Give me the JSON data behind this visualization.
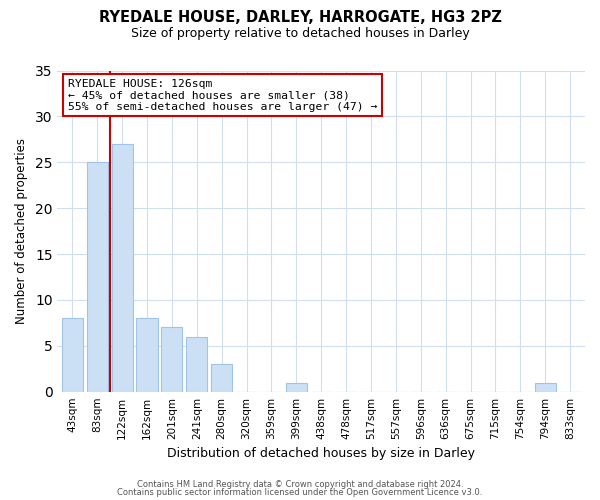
{
  "title": "RYEDALE HOUSE, DARLEY, HARROGATE, HG3 2PZ",
  "subtitle": "Size of property relative to detached houses in Darley",
  "xlabel": "Distribution of detached houses by size in Darley",
  "ylabel": "Number of detached properties",
  "bar_labels": [
    "43sqm",
    "83sqm",
    "122sqm",
    "162sqm",
    "201sqm",
    "241sqm",
    "280sqm",
    "320sqm",
    "359sqm",
    "399sqm",
    "438sqm",
    "478sqm",
    "517sqm",
    "557sqm",
    "596sqm",
    "636sqm",
    "675sqm",
    "715sqm",
    "754sqm",
    "794sqm",
    "833sqm"
  ],
  "bar_values": [
    8,
    25,
    27,
    8,
    7,
    6,
    3,
    0,
    0,
    1,
    0,
    0,
    0,
    0,
    0,
    0,
    0,
    0,
    0,
    1,
    0
  ],
  "bar_color": "#cce0f5",
  "bar_edgecolor": "#a0c4e8",
  "vline_color": "#cc0000",
  "vline_pos": 1.5,
  "ylim": [
    0,
    35
  ],
  "yticks": [
    0,
    5,
    10,
    15,
    20,
    25,
    30,
    35
  ],
  "annotation_title": "RYEDALE HOUSE: 126sqm",
  "annotation_line1": "← 45% of detached houses are smaller (38)",
  "annotation_line2": "55% of semi-detached houses are larger (47) →",
  "annotation_box_color": "#ffffff",
  "annotation_box_edgecolor": "#cc0000",
  "footer1": "Contains HM Land Registry data © Crown copyright and database right 2024.",
  "footer2": "Contains public sector information licensed under the Open Government Licence v3.0.",
  "background_color": "#ffffff",
  "grid_color": "#d0dff0"
}
